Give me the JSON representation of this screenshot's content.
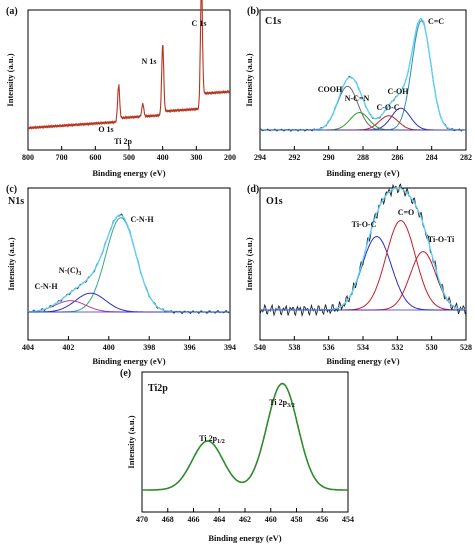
{
  "colors": {
    "survey": "#b5331f",
    "raw": "#222222",
    "envelope": "#5ad3ff",
    "c_c": "#2f8fa8",
    "c_oh": "#2a2ec7",
    "c_o_c": "#c71e2b",
    "n_c_n": "#2c9a2c",
    "cooh": "#6b6b6b",
    "cnh_main": "#3aa87a",
    "nc3": "#2d2dc6",
    "cnh_small": "#b43db4",
    "tioc": "#2a2ec7",
    "c_o_dbl": "#c71e2b",
    "tioti": "#c71e2b",
    "ti": "#2e8b2e"
  },
  "chart_data": [
    {
      "panel": "(a)",
      "type": "line",
      "title": "",
      "xlabel": "Binding energy (eV)",
      "ylabel": "Intensity (a.u.)",
      "xlim": [
        800,
        200
      ],
      "x_ticks": [
        800,
        700,
        600,
        500,
        400,
        300,
        200
      ],
      "peaks": [
        {
          "label": "O 1s",
          "x": 531,
          "height": 0.28,
          "width": 3
        },
        {
          "label": "Ti 2p",
          "x": 459,
          "height": 0.1,
          "width": 3
        },
        {
          "label": "N 1s",
          "x": 400,
          "height": 0.55,
          "width": 3
        },
        {
          "label": "C 1s",
          "x": 285,
          "height": 0.92,
          "width": 3
        }
      ],
      "annotations": [
        {
          "text": "O 1s",
          "x": 531
        },
        {
          "text": "Ti 2p",
          "x": 459
        },
        {
          "text": "N 1s",
          "x": 400
        },
        {
          "text": "C 1s",
          "x": 285
        }
      ]
    },
    {
      "panel": "(b)",
      "type": "line",
      "title": "C1s",
      "xlabel": "Binding energy (eV)",
      "ylabel": "Intensity (a.u.)",
      "xlim": [
        294,
        282
      ],
      "x_ticks": [
        294,
        292,
        290,
        288,
        286,
        284,
        282
      ],
      "components": [
        {
          "name": "C=C",
          "center": 284.6,
          "height": 1.0,
          "sigma": 0.55
        },
        {
          "name": "C-OH",
          "center": 285.8,
          "height": 0.2,
          "sigma": 0.55
        },
        {
          "name": "C-O-C",
          "center": 286.5,
          "height": 0.13,
          "sigma": 0.55
        },
        {
          "name": "N-C=N",
          "center": 288.2,
          "height": 0.16,
          "sigma": 0.55
        },
        {
          "name": "COOH",
          "center": 288.9,
          "height": 0.4,
          "sigma": 0.6
        }
      ],
      "annotations": [
        "COOH",
        "N-C=N",
        "C-O-C",
        "C-OH",
        "C=C"
      ]
    },
    {
      "panel": "(c)",
      "type": "line",
      "title": "N1s",
      "xlabel": "Binding energy (eV)",
      "ylabel": "Intensity (a.u.)",
      "xlim": [
        404,
        394
      ],
      "x_ticks": [
        404,
        402,
        400,
        398,
        396,
        394
      ],
      "components": [
        {
          "name": "C-N-H",
          "center": 399.4,
          "height": 1.0,
          "sigma": 0.75
        },
        {
          "name": "N-(C)3",
          "center": 400.9,
          "height": 0.2,
          "sigma": 0.75
        },
        {
          "name": "C-N-H",
          "center": 401.9,
          "height": 0.12,
          "sigma": 0.75
        }
      ],
      "annotations": [
        "C-N-H",
        "N-(C)3",
        "C-N-H"
      ]
    },
    {
      "panel": "(d)",
      "type": "line",
      "title": "O1s",
      "xlabel": "Binding energy (eV)",
      "ylabel": "Intensity (a.u.)",
      "xlim": [
        540,
        528
      ],
      "x_ticks": [
        540,
        538,
        536,
        534,
        532,
        530,
        528
      ],
      "components": [
        {
          "name": "Ti-O-C",
          "center": 533.2,
          "height": 0.78,
          "sigma": 0.85
        },
        {
          "name": "C=O",
          "center": 531.8,
          "height": 0.95,
          "sigma": 0.85
        },
        {
          "name": "Ti-O-Ti",
          "center": 530.5,
          "height": 0.62,
          "sigma": 0.75
        }
      ],
      "annotations": [
        "Ti-O-C",
        "C=O",
        "Ti-O-Ti"
      ]
    },
    {
      "panel": "(e)",
      "type": "line",
      "title": "Ti2p",
      "xlabel": "Binding energy (eV)",
      "ylabel": "Intensity (a.u.)",
      "xlim": [
        470,
        454
      ],
      "x_ticks": [
        470,
        468,
        466,
        464,
        462,
        460,
        458,
        456,
        454
      ],
      "components": [
        {
          "name": "Ti 2p1/2",
          "center": 464.9,
          "height": 0.46,
          "sigma": 1.2
        },
        {
          "name": "Ti 2p3/2",
          "center": 459.1,
          "height": 1.0,
          "sigma": 1.2
        }
      ],
      "annotations": [
        "Ti 2p1/2",
        "Ti 2p3/2"
      ]
    }
  ],
  "labels": {
    "a": {
      "panel": "(a)",
      "ylabel": "Intensity (a.u.)",
      "xlabel": "Binding energy (eV)",
      "o1s": "O 1s",
      "ti2p": "Ti 2p",
      "n1s": "N 1s",
      "c1s": "C 1s"
    },
    "b": {
      "panel": "(b)",
      "title": "C1s",
      "ylabel": "Intensity (a.u.)",
      "xlabel": "Binding energy (eV)",
      "cooh": "COOH",
      "ncn": "N-C=N",
      "coc": "C-O-C",
      "coh": "C-OH",
      "cc": "C=C"
    },
    "c": {
      "panel": "(c)",
      "title": "N1s",
      "ylabel": "Intensity (a.u.)",
      "xlabel": "Binding energy (eV)",
      "cnh_main": "C-N-H",
      "nc3": "N-(C)",
      "nc3_sub": "3",
      "cnh_small": "C-N-H"
    },
    "d": {
      "panel": "(d)",
      "title": "O1s",
      "ylabel": "Intensity (a.u.)",
      "xlabel": "Binding energy (eV)",
      "tioc": "Ti-O-C",
      "co": "C=O",
      "tioti": "Ti-O-Ti"
    },
    "e": {
      "panel": "(e)",
      "title": "Ti2p",
      "ylabel": "Intensity (a.u.)",
      "xlabel": "Binding energy (eV)",
      "p12": "Ti 2p",
      "p12_sub": "1/2",
      "p32": "Ti 2p",
      "p32_sub": "3/2"
    }
  }
}
